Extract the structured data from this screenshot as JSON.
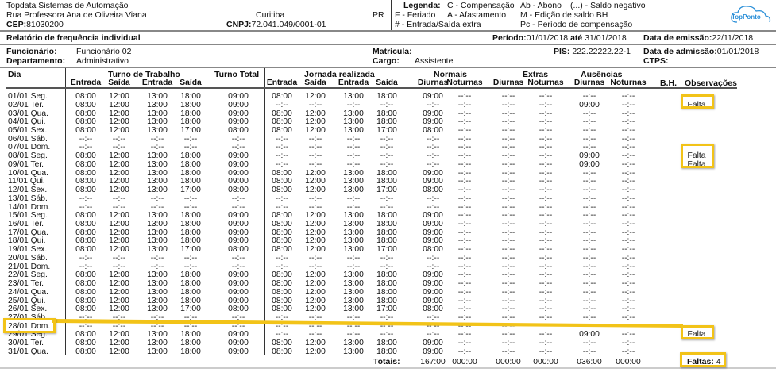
{
  "company": {
    "name": "Topdata Sistemas de Automação",
    "address": "Rua Professora Ana de Oliveira Viana",
    "city": "Curitiba",
    "state": "PR",
    "cep_label": "CEP:",
    "cep": "81030200",
    "cnpj_label": "CNPJ:",
    "cnpj": "72.041.049/0001-01"
  },
  "legend": {
    "title": "Legenda:",
    "items": [
      "C - Compensação",
      "Ab - Abono",
      "(...) - Saldo negativo",
      "F - Feriado",
      "A - Afastamento",
      "M - Edição de saldo BH",
      "# - Entrada/Saída extra",
      "Pc - Período de compensação"
    ]
  },
  "logo": {
    "text_a": "Top",
    "text_b": "Ponto",
    "color": "#2a8fd8"
  },
  "report": {
    "title": "Relatório de frequência individual",
    "period_label": "Período:",
    "period_start": "01/01/2018",
    "period_sep": "até",
    "period_end": "31/01/2018",
    "emission_label": "Data de emissão:",
    "emission": "22/11/2018"
  },
  "employee": {
    "name_label": "Funcionário:",
    "name": "Funcionário 02",
    "dept_label": "Departamento:",
    "dept": "Administrativo",
    "matricula_label": "Matrícula:",
    "cargo_label": "Cargo:",
    "cargo": "Assistente",
    "pis_label": "PIS:",
    "pis": "222.22222.22-1",
    "admission_label": "Data de admissão:",
    "admission": "01/01/2018",
    "ctps_label": "CTPS:"
  },
  "table": {
    "group_headers": {
      "dia": "Dia",
      "turno": "Turno de Trabalho",
      "turno_total": "Turno Total",
      "jornada": "Jornada realizada",
      "normais": "Normais",
      "extras": "Extras",
      "ausencias": "Ausências",
      "bh": "B.H.",
      "obs": "Observações"
    },
    "sub_headers": [
      "Entrada",
      "Saída",
      "Entrada",
      "Saída",
      "Entrada",
      "Saída",
      "Entrada",
      "Saída",
      "Diurnas",
      "Noturnas",
      "Diurnas",
      "Noturnas",
      "Diurnas",
      "Noturnas"
    ],
    "rows": [
      [
        "01/01 Seg.",
        "08:00",
        "12:00",
        "13:00",
        "18:00",
        "09:00",
        "08:00",
        "12:00",
        "13:00",
        "18:00",
        "09:00",
        "--:--",
        "--:--",
        "--:--",
        "--:--",
        "--:--",
        "",
        ""
      ],
      [
        "02/01 Ter.",
        "08:00",
        "12:00",
        "13:00",
        "18:00",
        "09:00",
        "--:--",
        "--:--",
        "--:--",
        "--:--",
        "--:--",
        "--:--",
        "--:--",
        "--:--",
        "09:00",
        "--:--",
        "",
        "Falta"
      ],
      [
        "03/01 Qua.",
        "08:00",
        "12:00",
        "13:00",
        "18:00",
        "09:00",
        "08:00",
        "12:00",
        "13:00",
        "18:00",
        "09:00",
        "--:--",
        "--:--",
        "--:--",
        "--:--",
        "--:--",
        "",
        ""
      ],
      [
        "04/01 Qui.",
        "08:00",
        "12:00",
        "13:00",
        "18:00",
        "09:00",
        "08:00",
        "12:00",
        "13:00",
        "18:00",
        "09:00",
        "--:--",
        "--:--",
        "--:--",
        "--:--",
        "--:--",
        "",
        ""
      ],
      [
        "05/01 Sex.",
        "08:00",
        "12:00",
        "13:00",
        "17:00",
        "08:00",
        "08:00",
        "12:00",
        "13:00",
        "17:00",
        "08:00",
        "--:--",
        "--:--",
        "--:--",
        "--:--",
        "--:--",
        "",
        ""
      ],
      [
        "06/01 Sáb.",
        "--:--",
        "--:--",
        "--:--",
        "--:--",
        "--:--",
        "--:--",
        "--:--",
        "--:--",
        "--:--",
        "--:--",
        "--:--",
        "--:--",
        "--:--",
        "--:--",
        "--:--",
        "",
        ""
      ],
      [
        "07/01 Dom.",
        "--:--",
        "--:--",
        "--:--",
        "--:--",
        "--:--",
        "--:--",
        "--:--",
        "--:--",
        "--:--",
        "--:--",
        "--:--",
        "--:--",
        "--:--",
        "--:--",
        "--:--",
        "",
        ""
      ],
      [
        "08/01 Seg.",
        "08:00",
        "12:00",
        "13:00",
        "18:00",
        "09:00",
        "--:--",
        "--:--",
        "--:--",
        "--:--",
        "--:--",
        "--:--",
        "--:--",
        "--:--",
        "09:00",
        "--:--",
        "",
        "Falta"
      ],
      [
        "09/01 Ter.",
        "08:00",
        "12:00",
        "13:00",
        "18:00",
        "09:00",
        "--:--",
        "--:--",
        "--:--",
        "--:--",
        "--:--",
        "--:--",
        "--:--",
        "--:--",
        "09:00",
        "--:--",
        "",
        "Falta"
      ],
      [
        "10/01 Qua.",
        "08:00",
        "12:00",
        "13:00",
        "18:00",
        "09:00",
        "08:00",
        "12:00",
        "13:00",
        "18:00",
        "09:00",
        "--:--",
        "--:--",
        "--:--",
        "--:--",
        "--:--",
        "",
        ""
      ],
      [
        "11/01 Qui.",
        "08:00",
        "12:00",
        "13:00",
        "18:00",
        "09:00",
        "08:00",
        "12:00",
        "13:00",
        "18:00",
        "09:00",
        "--:--",
        "--:--",
        "--:--",
        "--:--",
        "--:--",
        "",
        ""
      ],
      [
        "12/01 Sex.",
        "08:00",
        "12:00",
        "13:00",
        "17:00",
        "08:00",
        "08:00",
        "12:00",
        "13:00",
        "17:00",
        "08:00",
        "--:--",
        "--:--",
        "--:--",
        "--:--",
        "--:--",
        "",
        ""
      ],
      [
        "13/01 Sáb.",
        "--:--",
        "--:--",
        "--:--",
        "--:--",
        "--:--",
        "--:--",
        "--:--",
        "--:--",
        "--:--",
        "--:--",
        "--:--",
        "--:--",
        "--:--",
        "--:--",
        "--:--",
        "",
        ""
      ],
      [
        "14/01 Dom.",
        "--:--",
        "--:--",
        "--:--",
        "--:--",
        "--:--",
        "--:--",
        "--:--",
        "--:--",
        "--:--",
        "--:--",
        "--:--",
        "--:--",
        "--:--",
        "--:--",
        "--:--",
        "",
        ""
      ],
      [
        "15/01 Seg.",
        "08:00",
        "12:00",
        "13:00",
        "18:00",
        "09:00",
        "08:00",
        "12:00",
        "13:00",
        "18:00",
        "09:00",
        "--:--",
        "--:--",
        "--:--",
        "--:--",
        "--:--",
        "",
        ""
      ],
      [
        "16/01 Ter.",
        "08:00",
        "12:00",
        "13:00",
        "18:00",
        "09:00",
        "08:00",
        "12:00",
        "13:00",
        "18:00",
        "09:00",
        "--:--",
        "--:--",
        "--:--",
        "--:--",
        "--:--",
        "",
        ""
      ],
      [
        "17/01 Qua.",
        "08:00",
        "12:00",
        "13:00",
        "18:00",
        "09:00",
        "08:00",
        "12:00",
        "13:00",
        "18:00",
        "09:00",
        "--:--",
        "--:--",
        "--:--",
        "--:--",
        "--:--",
        "",
        ""
      ],
      [
        "18/01 Qui.",
        "08:00",
        "12:00",
        "13:00",
        "18:00",
        "09:00",
        "08:00",
        "12:00",
        "13:00",
        "18:00",
        "09:00",
        "--:--",
        "--:--",
        "--:--",
        "--:--",
        "--:--",
        "",
        ""
      ],
      [
        "19/01 Sex.",
        "08:00",
        "12:00",
        "13:00",
        "17:00",
        "08:00",
        "08:00",
        "12:00",
        "13:00",
        "17:00",
        "08:00",
        "--:--",
        "--:--",
        "--:--",
        "--:--",
        "--:--",
        "",
        ""
      ],
      [
        "20/01 Sáb.",
        "--:--",
        "--:--",
        "--:--",
        "--:--",
        "--:--",
        "--:--",
        "--:--",
        "--:--",
        "--:--",
        "--:--",
        "--:--",
        "--:--",
        "--:--",
        "--:--",
        "--:--",
        "",
        ""
      ],
      [
        "21/01 Dom.",
        "--:--",
        "--:--",
        "--:--",
        "--:--",
        "--:--",
        "--:--",
        "--:--",
        "--:--",
        "--:--",
        "--:--",
        "--:--",
        "--:--",
        "--:--",
        "--:--",
        "--:--",
        "",
        ""
      ],
      [
        "22/01 Seg.",
        "08:00",
        "12:00",
        "13:00",
        "18:00",
        "09:00",
        "08:00",
        "12:00",
        "13:00",
        "18:00",
        "09:00",
        "--:--",
        "--:--",
        "--:--",
        "--:--",
        "--:--",
        "",
        ""
      ],
      [
        "23/01 Ter.",
        "08:00",
        "12:00",
        "13:00",
        "18:00",
        "09:00",
        "08:00",
        "12:00",
        "13:00",
        "18:00",
        "09:00",
        "--:--",
        "--:--",
        "--:--",
        "--:--",
        "--:--",
        "",
        ""
      ],
      [
        "24/01 Qua.",
        "08:00",
        "12:00",
        "13:00",
        "18:00",
        "09:00",
        "08:00",
        "12:00",
        "13:00",
        "18:00",
        "09:00",
        "--:--",
        "--:--",
        "--:--",
        "--:--",
        "--:--",
        "",
        ""
      ],
      [
        "25/01 Qui.",
        "08:00",
        "12:00",
        "13:00",
        "18:00",
        "09:00",
        "08:00",
        "12:00",
        "13:00",
        "18:00",
        "09:00",
        "--:--",
        "--:--",
        "--:--",
        "--:--",
        "--:--",
        "",
        ""
      ],
      [
        "26/01 Sex.",
        "08:00",
        "12:00",
        "13:00",
        "17:00",
        "08:00",
        "08:00",
        "12:00",
        "13:00",
        "17:00",
        "08:00",
        "--:--",
        "--:--",
        "--:--",
        "--:--",
        "--:--",
        "",
        ""
      ],
      [
        "27/01 Sáb.",
        "--:--",
        "--:--",
        "--:--",
        "--:--",
        "--:--",
        "--:--",
        "--:--",
        "--:--",
        "--:--",
        "--:--",
        "--:--",
        "--:--",
        "--:--",
        "--:--",
        "--:--",
        "",
        ""
      ],
      [
        "28/01 Dom.",
        "--:--",
        "--:--",
        "--:--",
        "--:--",
        "--:--",
        "--:--",
        "--:--",
        "--:--",
        "--:--",
        "--:--",
        "--:--",
        "--:--",
        "--:--",
        "--:--",
        "--:--",
        "",
        ""
      ],
      [
        "29/01 Seg.",
        "08:00",
        "12:00",
        "13:00",
        "18:00",
        "09:00",
        "--:--",
        "--:--",
        "--:--",
        "--:--",
        "--:--",
        "--:--",
        "--:--",
        "--:--",
        "09:00",
        "--:--",
        "",
        "Falta"
      ],
      [
        "30/01 Ter.",
        "08:00",
        "12:00",
        "13:00",
        "18:00",
        "09:00",
        "08:00",
        "12:00",
        "13:00",
        "18:00",
        "09:00",
        "--:--",
        "--:--",
        "--:--",
        "--:--",
        "--:--",
        "",
        ""
      ],
      [
        "31/01 Qua.",
        "08:00",
        "12:00",
        "13:00",
        "18:00",
        "09:00",
        "08:00",
        "12:00",
        "13:00",
        "18:00",
        "09:00",
        "--:--",
        "--:--",
        "--:--",
        "--:--",
        "--:--",
        "",
        ""
      ]
    ],
    "totals": {
      "label": "Totais:",
      "values": [
        "167:00",
        "000:00",
        "000:00",
        "000:00",
        "036:00",
        "000:00"
      ],
      "faltas_label": "Faltas:",
      "faltas": "4"
    }
  },
  "annotation": {
    "color": "#f2c318"
  }
}
